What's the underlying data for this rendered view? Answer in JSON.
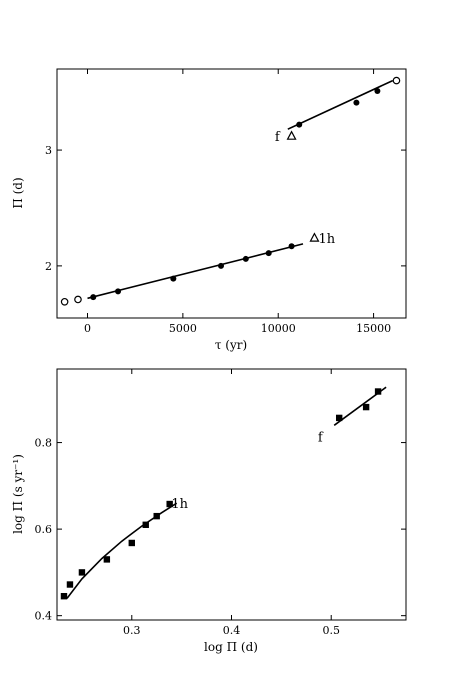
{
  "chart_data": [
    {
      "type": "scatter",
      "xlabel": "τ (yr)",
      "ylabel": "Π (d)",
      "xlim": [
        -1600,
        16700
      ],
      "ylim": [
        1.55,
        3.7
      ],
      "xticks": [
        0,
        5000,
        10000,
        15000
      ],
      "yticks": [
        2,
        3
      ],
      "grid": false,
      "series": [
        {
          "marker": "filled-circle",
          "x": [
            300,
            1600,
            4500,
            7000,
            8300,
            9500,
            10700
          ],
          "y": [
            1.73,
            1.78,
            1.89,
            2.0,
            2.06,
            2.11,
            2.17
          ]
        },
        {
          "marker": "filled-circle",
          "x": [
            11100,
            14100,
            15200
          ],
          "y": [
            3.22,
            3.41,
            3.51
          ]
        },
        {
          "marker": "open-circle",
          "x": [
            -1200,
            -500,
            16200
          ],
          "y": [
            1.69,
            1.71,
            3.6
          ]
        },
        {
          "marker": "open-triangle",
          "x": [
            10700,
            11900
          ],
          "y": [
            3.12,
            2.24
          ]
        }
      ],
      "fits": [
        {
          "x": [
            0,
            11300
          ],
          "y": [
            1.72,
            2.19
          ]
        },
        {
          "x": [
            10500,
            16000
          ],
          "y": [
            3.18,
            3.6
          ]
        }
      ],
      "annotations": [
        {
          "text": "f",
          "x": 9950,
          "y": 3.12
        },
        {
          "text": "1h",
          "x": 12550,
          "y": 2.24
        }
      ]
    },
    {
      "type": "scatter",
      "xlabel": "log Π (d)",
      "ylabel": "log Π̇ (s yr⁻¹)",
      "xlim": [
        0.225,
        0.575
      ],
      "ylim": [
        0.39,
        0.97
      ],
      "xticks": [
        0.3,
        0.4,
        0.5
      ],
      "xticklabels": [
        "0.3",
        "0.4",
        "0.5"
      ],
      "yticks": [
        0.4,
        0.6,
        0.8
      ],
      "yticklabels": [
        "0.4",
        "0.6",
        "0.8"
      ],
      "grid": false,
      "series": [
        {
          "marker": "filled-square",
          "x": [
            0.232,
            0.238,
            0.25,
            0.275,
            0.3,
            0.314,
            0.325,
            0.338
          ],
          "y": [
            0.445,
            0.472,
            0.5,
            0.53,
            0.568,
            0.61,
            0.63,
            0.658
          ]
        },
        {
          "marker": "filled-square",
          "x": [
            0.508,
            0.535,
            0.547
          ],
          "y": [
            0.857,
            0.882,
            0.918
          ]
        }
      ],
      "fits": [
        {
          "x": [
            0.235,
            0.25,
            0.27,
            0.29,
            0.31,
            0.33,
            0.345
          ],
          "y": [
            0.44,
            0.485,
            0.532,
            0.572,
            0.607,
            0.638,
            0.66
          ]
        },
        {
          "x": [
            0.503,
            0.555
          ],
          "y": [
            0.84,
            0.928
          ]
        }
      ],
      "annotations": [
        {
          "text": "1h",
          "x": 0.348,
          "y": 0.66
        },
        {
          "text": "f",
          "x": 0.489,
          "y": 0.814
        }
      ]
    }
  ]
}
